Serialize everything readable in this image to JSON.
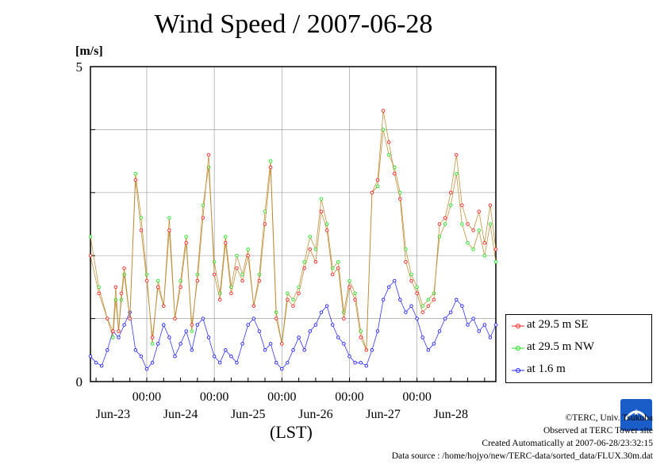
{
  "page": {
    "title": "Wind Speed / 2007-06-28",
    "unit_label": "[m/s]",
    "xaxis_label": "(LST)",
    "credits": [
      "©TERC, Univ. Tsukuba",
      "Observed at TERC Tower site",
      "Created Automatically at 2007-06-28/23:32:15",
      "Data source : /home/hojyo/new/TERC-data/sorted_data/FLUX.30m.dat"
    ],
    "logo_text": "TERC"
  },
  "colors": {
    "se": "#ff2020",
    "nw": "#20e020",
    "low": "#2020ff",
    "connect": "#b8862a",
    "grid": "#a0a0a0"
  },
  "chart_data": {
    "type": "line",
    "title": "Wind Speed / 2007-06-28",
    "ylabel": "[m/s]",
    "xlabel": "(LST)",
    "ylim": [
      0,
      5
    ],
    "yticks": [
      "0",
      "5"
    ],
    "x_ticks_time": [
      "00:00",
      "00:00",
      "00:00",
      "00:00",
      "00:00"
    ],
    "x_ticks_date": [
      "Jun-23",
      "Jun-24",
      "Jun-25",
      "Jun-26",
      "Jun-27",
      "Jun-28"
    ],
    "grid": true,
    "legend_position": "right",
    "x_hours_range": [
      0,
      144
    ],
    "series": [
      {
        "name": "at 29.5 m SE",
        "key": "se",
        "x_hours": [
          0,
          3,
          6,
          8,
          9,
          10,
          11,
          12,
          14,
          16,
          18,
          20,
          22,
          24,
          26,
          28,
          30,
          32,
          34,
          36,
          38,
          40,
          42,
          44,
          46,
          48,
          50,
          52,
          54,
          56,
          58,
          60,
          62,
          64,
          66,
          68,
          70,
          72,
          74,
          76,
          78,
          80,
          82,
          84,
          86,
          88,
          90,
          92,
          94,
          96,
          98,
          100,
          102,
          104,
          106,
          108,
          110,
          112,
          114,
          116,
          118,
          120,
          122,
          124,
          126,
          128,
          130,
          132,
          134,
          136,
          138,
          140,
          142,
          144
        ],
        "values": [
          2.0,
          1.4,
          1.0,
          0.8,
          1.5,
          0.8,
          1.4,
          1.8,
          1.0,
          3.2,
          2.4,
          1.6,
          0.7,
          1.5,
          1.2,
          2.4,
          1.0,
          1.5,
          2.2,
          0.9,
          1.6,
          2.6,
          3.6,
          1.7,
          1.3,
          2.2,
          1.4,
          1.8,
          1.6,
          2.0,
          1.2,
          1.6,
          2.5,
          3.4,
          1.0,
          0.6,
          1.3,
          1.2,
          1.4,
          1.8,
          2.1,
          1.9,
          2.7,
          2.4,
          1.7,
          1.8,
          1.0,
          1.5,
          1.3,
          0.7,
          0.5,
          3.0,
          3.2,
          4.3,
          3.8,
          3.3,
          2.9,
          1.9,
          1.6,
          1.4,
          1.1,
          1.2,
          1.3,
          2.5,
          2.6,
          3.0,
          3.6,
          2.8,
          2.5,
          2.4,
          2.7,
          2.2,
          2.8,
          2.1
        ]
      },
      {
        "name": "at 29.5 m NW",
        "key": "nw",
        "x_hours": [
          0,
          3,
          6,
          8,
          9,
          10,
          11,
          12,
          14,
          16,
          18,
          20,
          22,
          24,
          26,
          28,
          30,
          32,
          34,
          36,
          38,
          40,
          42,
          44,
          46,
          48,
          50,
          52,
          54,
          56,
          58,
          60,
          62,
          64,
          66,
          68,
          70,
          72,
          74,
          76,
          78,
          80,
          82,
          84,
          86,
          88,
          90,
          92,
          94,
          96,
          98,
          100,
          102,
          104,
          106,
          108,
          110,
          112,
          114,
          116,
          118,
          120,
          122,
          124,
          126,
          128,
          130,
          132,
          134,
          136,
          138,
          140,
          142,
          144
        ],
        "values": [
          2.3,
          1.5,
          1.0,
          0.7,
          1.3,
          0.8,
          1.3,
          1.7,
          1.0,
          3.3,
          2.6,
          1.7,
          0.6,
          1.6,
          1.2,
          2.6,
          1.0,
          1.6,
          2.3,
          0.8,
          1.7,
          2.8,
          3.4,
          1.9,
          1.4,
          2.3,
          1.5,
          2.0,
          1.7,
          2.1,
          1.2,
          1.7,
          2.7,
          3.5,
          1.1,
          0.6,
          1.4,
          1.3,
          1.5,
          1.9,
          2.3,
          2.1,
          2.9,
          2.5,
          1.8,
          1.9,
          1.1,
          1.6,
          1.4,
          0.8,
          0.5,
          3.0,
          3.1,
          4.0,
          3.6,
          3.4,
          3.0,
          2.1,
          1.7,
          1.5,
          1.2,
          1.3,
          1.4,
          2.3,
          2.5,
          2.8,
          3.3,
          2.5,
          2.2,
          2.1,
          2.4,
          2.0,
          2.5,
          1.9
        ]
      },
      {
        "name": "at 1.6 m",
        "key": "low",
        "x_hours": [
          0,
          2,
          4,
          6,
          8,
          10,
          12,
          14,
          16,
          18,
          20,
          22,
          24,
          26,
          28,
          30,
          32,
          34,
          36,
          38,
          40,
          42,
          44,
          46,
          48,
          50,
          52,
          54,
          56,
          58,
          60,
          62,
          64,
          66,
          68,
          70,
          72,
          74,
          76,
          78,
          80,
          82,
          84,
          86,
          88,
          90,
          92,
          94,
          96,
          98,
          100,
          102,
          104,
          106,
          108,
          110,
          112,
          114,
          116,
          118,
          120,
          122,
          124,
          126,
          128,
          130,
          132,
          134,
          136,
          138,
          140,
          142,
          144
        ],
        "values": [
          0.4,
          0.3,
          0.25,
          0.5,
          0.8,
          0.7,
          0.9,
          1.1,
          0.5,
          0.4,
          0.2,
          0.3,
          0.6,
          0.9,
          0.7,
          0.4,
          0.6,
          0.8,
          0.5,
          0.9,
          1.0,
          0.7,
          0.4,
          0.3,
          0.5,
          0.4,
          0.3,
          0.6,
          0.9,
          1.0,
          0.8,
          0.5,
          0.6,
          0.3,
          0.2,
          0.3,
          0.5,
          0.7,
          0.5,
          0.8,
          0.9,
          1.1,
          1.2,
          0.9,
          0.7,
          0.6,
          0.4,
          0.3,
          0.3,
          0.25,
          0.5,
          0.8,
          1.3,
          1.5,
          1.6,
          1.3,
          1.1,
          1.2,
          1.0,
          0.7,
          0.5,
          0.6,
          0.8,
          1.0,
          1.1,
          1.3,
          1.2,
          0.9,
          1.0,
          0.8,
          0.9,
          0.7,
          0.9
        ]
      }
    ]
  }
}
